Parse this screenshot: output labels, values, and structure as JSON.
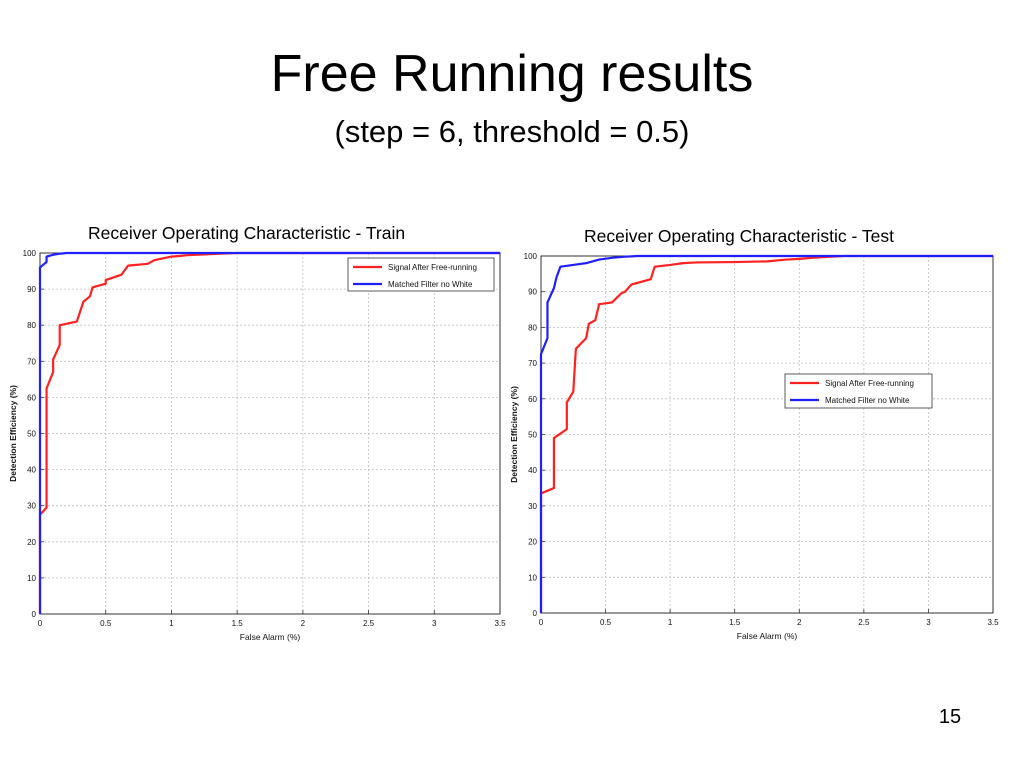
{
  "slide": {
    "title": "Free Running results",
    "subtitle": "(step = 6, threshold = 0.5)",
    "page_number": "15"
  },
  "chart_data": [
    {
      "type": "line",
      "caption": "Receiver Operating Characteristic - Train",
      "xlabel": "False Alarm (%)",
      "ylabel": "Detection Efficiency (%)",
      "xlim": [
        0,
        3.5
      ],
      "ylim": [
        0,
        100
      ],
      "xticks": [
        0,
        0.5,
        1,
        1.5,
        2,
        2.5,
        3,
        3.5
      ],
      "xtick_labels": [
        "0",
        "0.5",
        "1",
        "1.5",
        "2",
        "2.5",
        "3",
        "3.5"
      ],
      "yticks": [
        0,
        10,
        20,
        30,
        40,
        50,
        60,
        70,
        80,
        90,
        100
      ],
      "ytick_labels": [
        "0",
        "10",
        "20",
        "30",
        "40",
        "50",
        "60",
        "70",
        "80",
        "90",
        "100"
      ],
      "grid": true,
      "legend_position": "top-right",
      "series": [
        {
          "name": "Signal After Free-running",
          "color": "#ff2020",
          "x": [
            0,
            0,
            0.05,
            0.05,
            0.1,
            0.1,
            0.15,
            0.15,
            0.28,
            0.33,
            0.38,
            0.4,
            0.5,
            0.5,
            0.62,
            0.67,
            0.82,
            0.87,
            1.0,
            1.07,
            1.12,
            1.25,
            1.35,
            1.5,
            3.5
          ],
          "y": [
            0,
            27.5,
            29.5,
            62.5,
            67,
            70.5,
            74.5,
            80,
            81,
            86.5,
            88,
            90.5,
            91.5,
            92.5,
            94,
            96.5,
            97,
            98,
            99,
            99.2,
            99.4,
            99.6,
            99.8,
            100,
            100
          ]
        },
        {
          "name": "Matched Filter no White",
          "color": "#2020ff",
          "x": [
            0,
            0,
            0.05,
            0.05,
            0.1,
            0.15,
            0.2,
            3.5
          ],
          "y": [
            0,
            96,
            97.5,
            99,
            99.5,
            99.8,
            100,
            100
          ]
        }
      ]
    },
    {
      "type": "line",
      "caption": "Receiver Operating Characteristic - Test",
      "xlabel": "False Alarm (%)",
      "ylabel": "Detection Efficiency (%)",
      "xlim": [
        0,
        3.5
      ],
      "ylim": [
        0,
        100
      ],
      "xticks": [
        0,
        0.5,
        1,
        1.5,
        2,
        2.5,
        3,
        3.5
      ],
      "xtick_labels": [
        "0",
        "0.5",
        "1",
        "1.5",
        "2",
        "2.5",
        "3",
        "3.5"
      ],
      "yticks": [
        0,
        10,
        20,
        30,
        40,
        50,
        60,
        70,
        80,
        90,
        100
      ],
      "ytick_labels": [
        "0",
        "10",
        "20",
        "30",
        "40",
        "50",
        "60",
        "70",
        "80",
        "90",
        "100"
      ],
      "grid": true,
      "legend_position": "center-right",
      "series": [
        {
          "name": "Signal After Free-running",
          "color": "#ff2020",
          "x": [
            0,
            0,
            0.1,
            0.1,
            0.2,
            0.2,
            0.25,
            0.27,
            0.35,
            0.37,
            0.42,
            0.45,
            0.55,
            0.62,
            0.65,
            0.7,
            0.85,
            0.88,
            1.0,
            1.1,
            1.2,
            1.5,
            1.75,
            1.9,
            2.0,
            2.1,
            2.25,
            2.35,
            3.5
          ],
          "y": [
            0,
            33.5,
            35,
            49,
            51.5,
            59,
            62,
            74,
            77,
            81,
            82,
            86.5,
            87,
            89.5,
            90,
            92,
            93.5,
            97,
            97.5,
            98,
            98.2,
            98.3,
            98.5,
            99,
            99.2,
            99.5,
            99.8,
            100,
            100
          ]
        },
        {
          "name": "Matched Filter no White",
          "color": "#2020ff",
          "x": [
            0,
            0,
            0.05,
            0.05,
            0.1,
            0.12,
            0.15,
            0.25,
            0.35,
            0.45,
            0.55,
            0.65,
            0.75,
            3.5
          ],
          "y": [
            0,
            72.5,
            77,
            87,
            91,
            94,
            97,
            97.5,
            98,
            99,
            99.5,
            99.8,
            100,
            100
          ]
        }
      ]
    }
  ]
}
